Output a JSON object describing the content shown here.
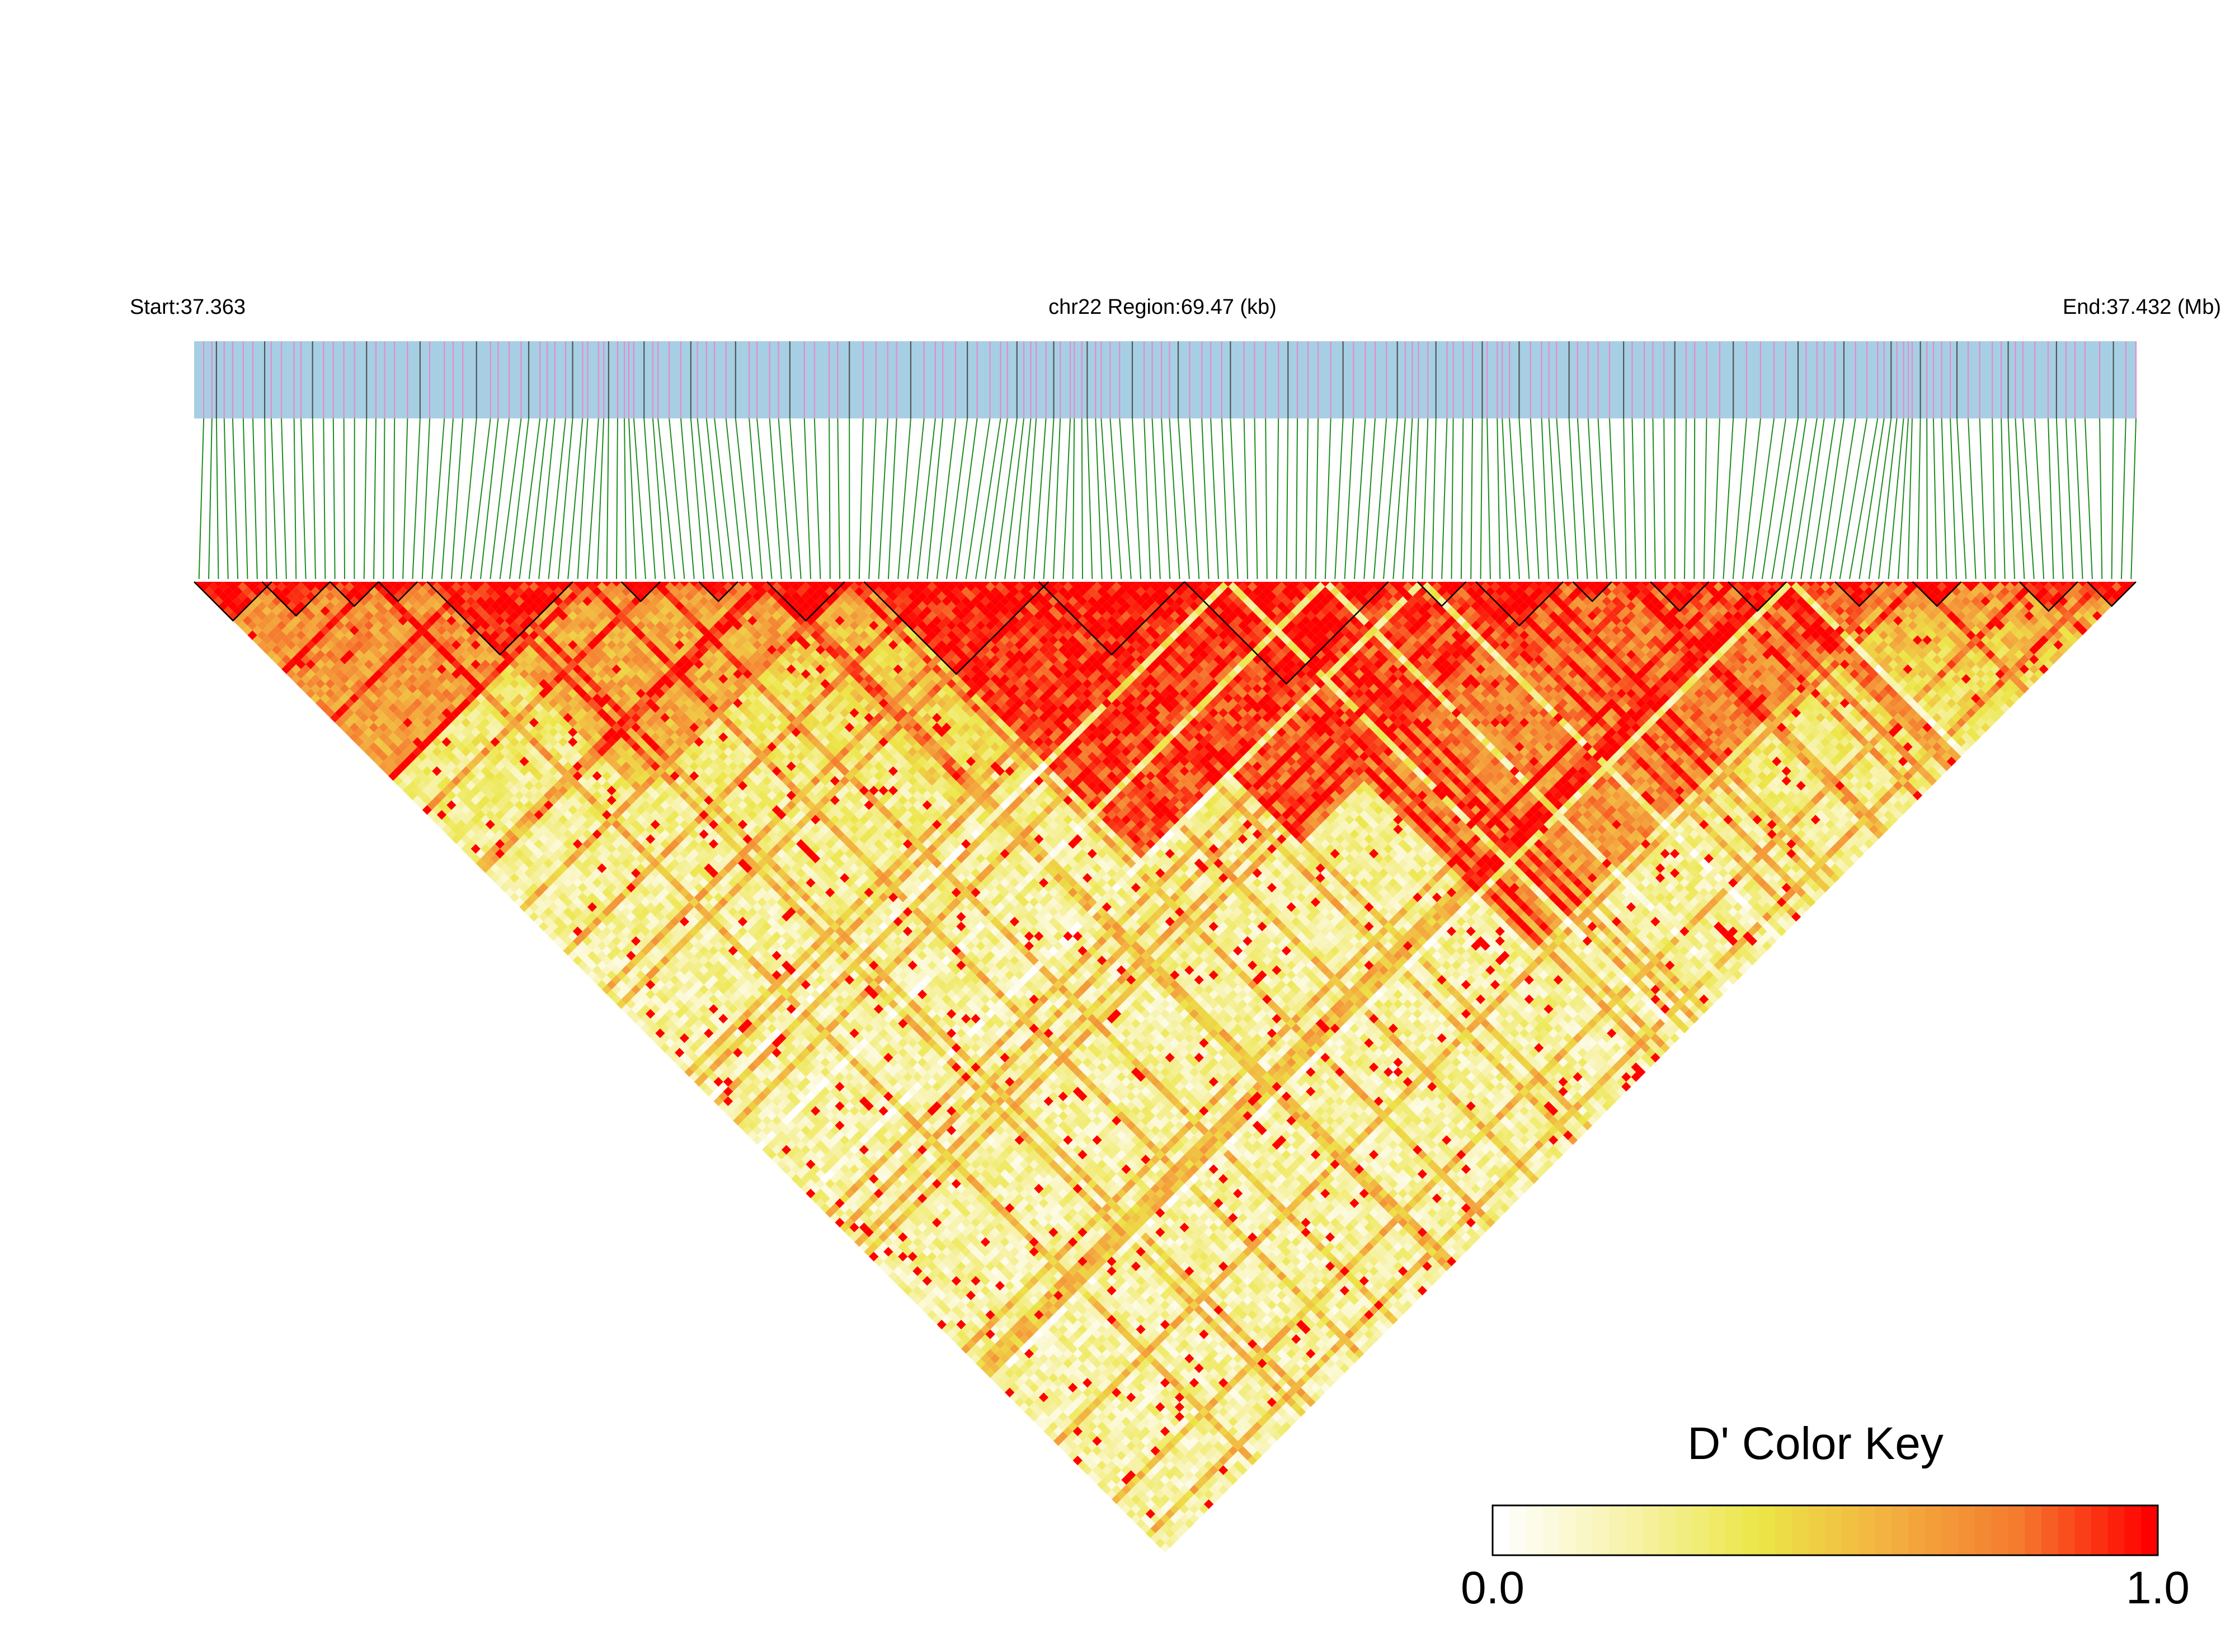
{
  "chart_data": {
    "type": "heatmap",
    "chromosome_label": "chr22 Region:69.47 (kb)",
    "start_label": "Start:37.363",
    "end_label": "End:37.432 (Mb)",
    "region_start_mb": 37.363,
    "region_end_mb": 37.432,
    "region_kb": 69.47,
    "snp_count": 200,
    "color_key": {
      "title": "D' Color Key",
      "min_label": "0.0",
      "max_label": "1.0",
      "min": 0.0,
      "max": 1.0,
      "stops": [
        "#ffffff",
        "#f7f2a8",
        "#ece647",
        "#f3b040",
        "#f57a2e",
        "#ff0000"
      ]
    },
    "colors": {
      "track_fill": "#a6cfe3",
      "snp_mark_a": "#e58ad0",
      "snp_mark_b": "#555555",
      "connector": "#1e8c1e",
      "block_outline": "#000000"
    },
    "ld_blocks": [
      {
        "from": 0,
        "to": 7
      },
      {
        "from": 7,
        "to": 13
      },
      {
        "from": 14,
        "to": 18
      },
      {
        "from": 19,
        "to": 22
      },
      {
        "from": 24,
        "to": 38
      },
      {
        "from": 44,
        "to": 47
      },
      {
        "from": 52,
        "to": 55
      },
      {
        "from": 59,
        "to": 66
      },
      {
        "from": 69,
        "to": 87
      },
      {
        "from": 87,
        "to": 101
      },
      {
        "from": 102,
        "to": 122
      },
      {
        "from": 126,
        "to": 130
      },
      {
        "from": 132,
        "to": 140
      },
      {
        "from": 142,
        "to": 145
      },
      {
        "from": 150,
        "to": 155
      },
      {
        "from": 158,
        "to": 163
      },
      {
        "from": 169,
        "to": 173
      },
      {
        "from": 177,
        "to": 181
      },
      {
        "from": 188,
        "to": 193
      },
      {
        "from": 195,
        "to": 199
      }
    ],
    "high_ld_regions": [
      {
        "from": 69,
        "to": 125,
        "level": 0.95
      },
      {
        "from": 87,
        "to": 140,
        "level": 0.88
      },
      {
        "from": 100,
        "to": 175,
        "level": 0.8
      },
      {
        "from": 0,
        "to": 40,
        "level": 0.72
      },
      {
        "from": 24,
        "to": 66,
        "level": 0.65
      },
      {
        "from": 55,
        "to": 100,
        "level": 0.5
      }
    ]
  }
}
